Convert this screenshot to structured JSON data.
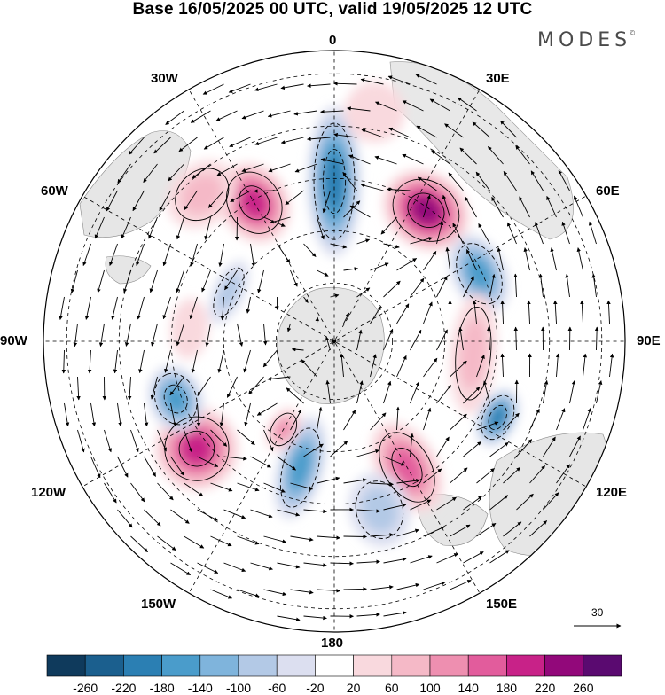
{
  "title": "Base 16/05/2025 00 UTC, valid 19/05/2025 12 UTC",
  "brand": "MODES",
  "brand_mark": "©",
  "longitude_labels": {
    "top": "0",
    "bottom": "180",
    "left": "90W",
    "right": "90E",
    "upper_left_1": "30W",
    "upper_left_2": "60W",
    "lower_left_1": "120W",
    "lower_left_2": "150W",
    "upper_right_1": "30E",
    "upper_right_2": "60E",
    "lower_right_1": "120E",
    "lower_right_2": "150E"
  },
  "reference_vector": "30",
  "colorbar": {
    "ticks": [
      "-260",
      "-220",
      "-180",
      "-140",
      "-100",
      "-60",
      "-20",
      "20",
      "60",
      "100",
      "140",
      "180",
      "220",
      "260"
    ],
    "colors": [
      "#0f3a5c",
      "#1b5f8e",
      "#2b7fb3",
      "#4a9ccb",
      "#7fb4dc",
      "#b3c9e6",
      "#dcdff0",
      "#ffffff",
      "#f9d9de",
      "#f5b9c7",
      "#ee8fb0",
      "#e25c9c",
      "#c82288",
      "#92087a",
      "#5a0a70"
    ]
  },
  "anomalies": [
    {
      "lon": 0,
      "r": 0.55,
      "rx": 0.07,
      "ry": 0.2,
      "v": -200
    },
    {
      "lon": -30,
      "r": 0.55,
      "rx": 0.09,
      "ry": 0.11,
      "v": 200
    },
    {
      "lon": 35,
      "r": 0.55,
      "rx": 0.12,
      "ry": 0.1,
      "v": 240
    },
    {
      "lon": 65,
      "r": 0.55,
      "rx": 0.11,
      "ry": 0.07,
      "v": -140
    },
    {
      "lon": 95,
      "r": 0.48,
      "rx": 0.16,
      "ry": 0.06,
      "v": 90
    },
    {
      "lon": 115,
      "r": 0.62,
      "rx": 0.08,
      "ry": 0.05,
      "v": -180
    },
    {
      "lon": 150,
      "r": 0.5,
      "rx": 0.08,
      "ry": 0.13,
      "v": 160
    },
    {
      "lon": 165,
      "r": 0.6,
      "rx": 0.08,
      "ry": 0.1,
      "v": -60
    },
    {
      "lon": 195,
      "r": 0.45,
      "rx": 0.06,
      "ry": 0.14,
      "v": -140
    },
    {
      "lon": 210,
      "r": 0.35,
      "rx": 0.04,
      "ry": 0.06,
      "v": 110
    },
    {
      "lon": 232,
      "r": 0.6,
      "rx": 0.11,
      "ry": 0.11,
      "v": 180
    },
    {
      "lon": 250,
      "r": 0.58,
      "rx": 0.09,
      "ry": 0.07,
      "v": -160
    },
    {
      "lon": 275,
      "r": 0.5,
      "rx": 0.08,
      "ry": 0.05,
      "v": 50
    },
    {
      "lon": 295,
      "r": 0.4,
      "rx": 0.09,
      "ry": 0.04,
      "v": -80
    },
    {
      "lon": 318,
      "r": 0.68,
      "rx": 0.1,
      "ry": 0.08,
      "v": 60
    },
    {
      "lon": 10,
      "r": 0.8,
      "rx": 0.08,
      "ry": 0.08,
      "v": 40
    }
  ]
}
